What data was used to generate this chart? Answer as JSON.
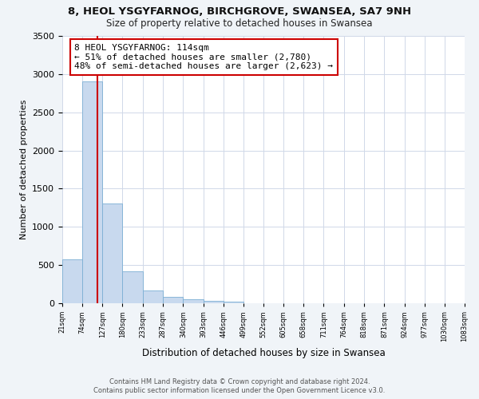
{
  "title1": "8, HEOL YSGYFARNOG, BIRCHGROVE, SWANSEA, SA7 9NH",
  "title2": "Size of property relative to detached houses in Swansea",
  "xlabel": "Distribution of detached houses by size in Swansea",
  "ylabel": "Number of detached properties",
  "footnote1": "Contains HM Land Registry data © Crown copyright and database right 2024.",
  "footnote2": "Contains public sector information licensed under the Open Government Licence v3.0.",
  "bar_edges": [
    21,
    74,
    127,
    180,
    233,
    287,
    340,
    393,
    446,
    499,
    552,
    605,
    658,
    711,
    764,
    818,
    871,
    924,
    977,
    1030,
    1083
  ],
  "bar_values": [
    570,
    2900,
    1305,
    415,
    170,
    80,
    55,
    30,
    20,
    0,
    0,
    0,
    0,
    0,
    0,
    0,
    0,
    0,
    0,
    0
  ],
  "bar_color": "#c8d9ee",
  "bar_edge_color": "#7bafd4",
  "vline_x": 114,
  "vline_color": "#cc0000",
  "ylim": [
    0,
    3500
  ],
  "xlim": [
    21,
    1083
  ],
  "annotation_title": "8 HEOL YSGYFARNOG: 114sqm",
  "annotation_line1": "← 51% of detached houses are smaller (2,780)",
  "annotation_line2": "48% of semi-detached houses are larger (2,623) →",
  "annotation_box_edge": "#cc0000",
  "tick_labels": [
    "21sqm",
    "74sqm",
    "127sqm",
    "180sqm",
    "233sqm",
    "287sqm",
    "340sqm",
    "393sqm",
    "446sqm",
    "499sqm",
    "552sqm",
    "605sqm",
    "658sqm",
    "711sqm",
    "764sqm",
    "818sqm",
    "871sqm",
    "924sqm",
    "977sqm",
    "1030sqm",
    "1083sqm"
  ],
  "fig_background": "#f0f4f8",
  "plot_background": "#ffffff",
  "grid_color": "#d0d8e8"
}
